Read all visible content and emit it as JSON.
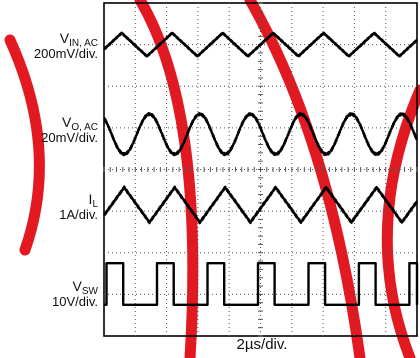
{
  "chart_data": {
    "type": "line",
    "title": "",
    "xlabel": "2µs/div.",
    "x_divisions": 10,
    "y_divisions": 8,
    "grid": true,
    "series": [
      {
        "name": "VIN, AC",
        "symbol": "V",
        "subscript": "IN, AC",
        "scale": "200mV/div.",
        "shape": "triangle",
        "cycles": 6.2,
        "phase": 0.15,
        "center_div": 7.0,
        "amplitude_div": 0.28
      },
      {
        "name": "VO, AC",
        "symbol": "V",
        "subscript": "O, AC",
        "scale": "20mV/div.",
        "shape": "sine",
        "cycles": 6.2,
        "phase": 0.35,
        "center_div": 4.85,
        "amplitude_div": 0.48
      },
      {
        "name": "IL",
        "symbol": "I",
        "subscript": "L",
        "scale": "1A/div.",
        "shape": "triangle",
        "cycles": 6.2,
        "phase": 0.1,
        "center_div": 3.15,
        "amplitude_div": 0.42
      },
      {
        "name": "VSW",
        "symbol": "V",
        "subscript": "SW",
        "scale": "10V/div.",
        "shape": "pulse",
        "cycles": 6.2,
        "phase": 0.05,
        "duty": 0.33,
        "low_div": 0.75,
        "high_div": 1.75
      }
    ]
  },
  "watermark_color": "#e0000a",
  "trace_color": "#000000",
  "grid_color": "#555555"
}
